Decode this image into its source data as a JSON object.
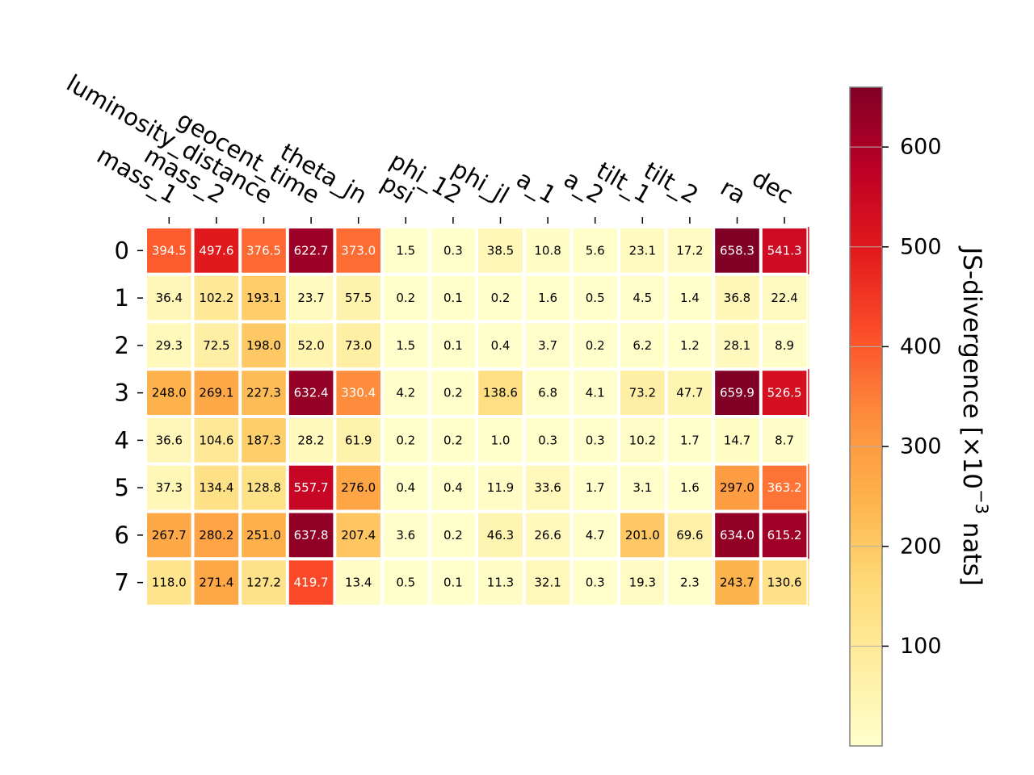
{
  "chart_data": {
    "type": "heatmap",
    "colormap": "YlOrRd",
    "colors": {
      "ylorrd_stops": [
        "#ffffcc",
        "#ffeda0",
        "#fed976",
        "#feb24c",
        "#fd8d3c",
        "#fc4e2a",
        "#e31a1c",
        "#bd0026",
        "#800026"
      ],
      "background": "#ffffff",
      "cell_gap": "#ffffff",
      "colorbar_outline": "#808080",
      "text_dark": "#000000",
      "text_light": "#ffffff"
    },
    "x_categories": [
      "mass_1",
      "mass_2",
      "luminosity_distance",
      "geocent_time",
      "theta_jn",
      "psi",
      "phi_12",
      "phi_jl",
      "a_1",
      "a_2",
      "tilt_1",
      "tilt_2",
      "ra",
      "dec"
    ],
    "y_categories": [
      "0",
      "1",
      "2",
      "3",
      "4",
      "5",
      "6",
      "7"
    ],
    "values": [
      [
        394.5,
        497.6,
        376.5,
        622.7,
        373.0,
        1.5,
        0.3,
        38.5,
        10.8,
        5.6,
        23.1,
        17.2,
        658.3,
        541.3
      ],
      [
        36.4,
        102.2,
        193.1,
        23.7,
        57.5,
        0.2,
        0.1,
        0.2,
        1.6,
        0.5,
        4.5,
        1.4,
        36.8,
        22.4
      ],
      [
        29.3,
        72.5,
        198.0,
        52.0,
        73.0,
        1.5,
        0.1,
        0.4,
        3.7,
        0.2,
        6.2,
        1.2,
        28.1,
        8.9
      ],
      [
        248.0,
        269.1,
        227.3,
        632.4,
        330.4,
        4.2,
        0.2,
        138.6,
        6.8,
        4.1,
        73.2,
        47.7,
        659.9,
        526.5
      ],
      [
        36.6,
        104.6,
        187.3,
        28.2,
        61.9,
        0.2,
        0.2,
        1.0,
        0.3,
        0.3,
        10.2,
        1.7,
        14.7,
        8.7
      ],
      [
        37.3,
        134.4,
        128.8,
        557.7,
        276.0,
        0.4,
        0.4,
        11.9,
        33.6,
        1.7,
        3.1,
        1.6,
        297.0,
        363.2
      ],
      [
        267.7,
        280.2,
        251.0,
        637.8,
        207.4,
        3.6,
        0.2,
        46.3,
        26.6,
        4.7,
        201.0,
        69.6,
        634.0,
        615.2
      ],
      [
        118.0,
        271.4,
        127.2,
        419.7,
        13.4,
        0.5,
        0.1,
        11.3,
        32.1,
        0.3,
        19.3,
        2.3,
        243.7,
        130.6
      ]
    ],
    "colorbar": {
      "label_main": "JS-divergence [×10",
      "label_exponent": "−3",
      "label_unit": " nats]",
      "range": [
        0.1,
        659.9
      ],
      "ticks": [
        100,
        200,
        300,
        400,
        500,
        600
      ],
      "tick_labels": [
        "100",
        "200",
        "300",
        "400",
        "500",
        "600"
      ]
    },
    "grid": false,
    "legend": "colorbar-right"
  }
}
